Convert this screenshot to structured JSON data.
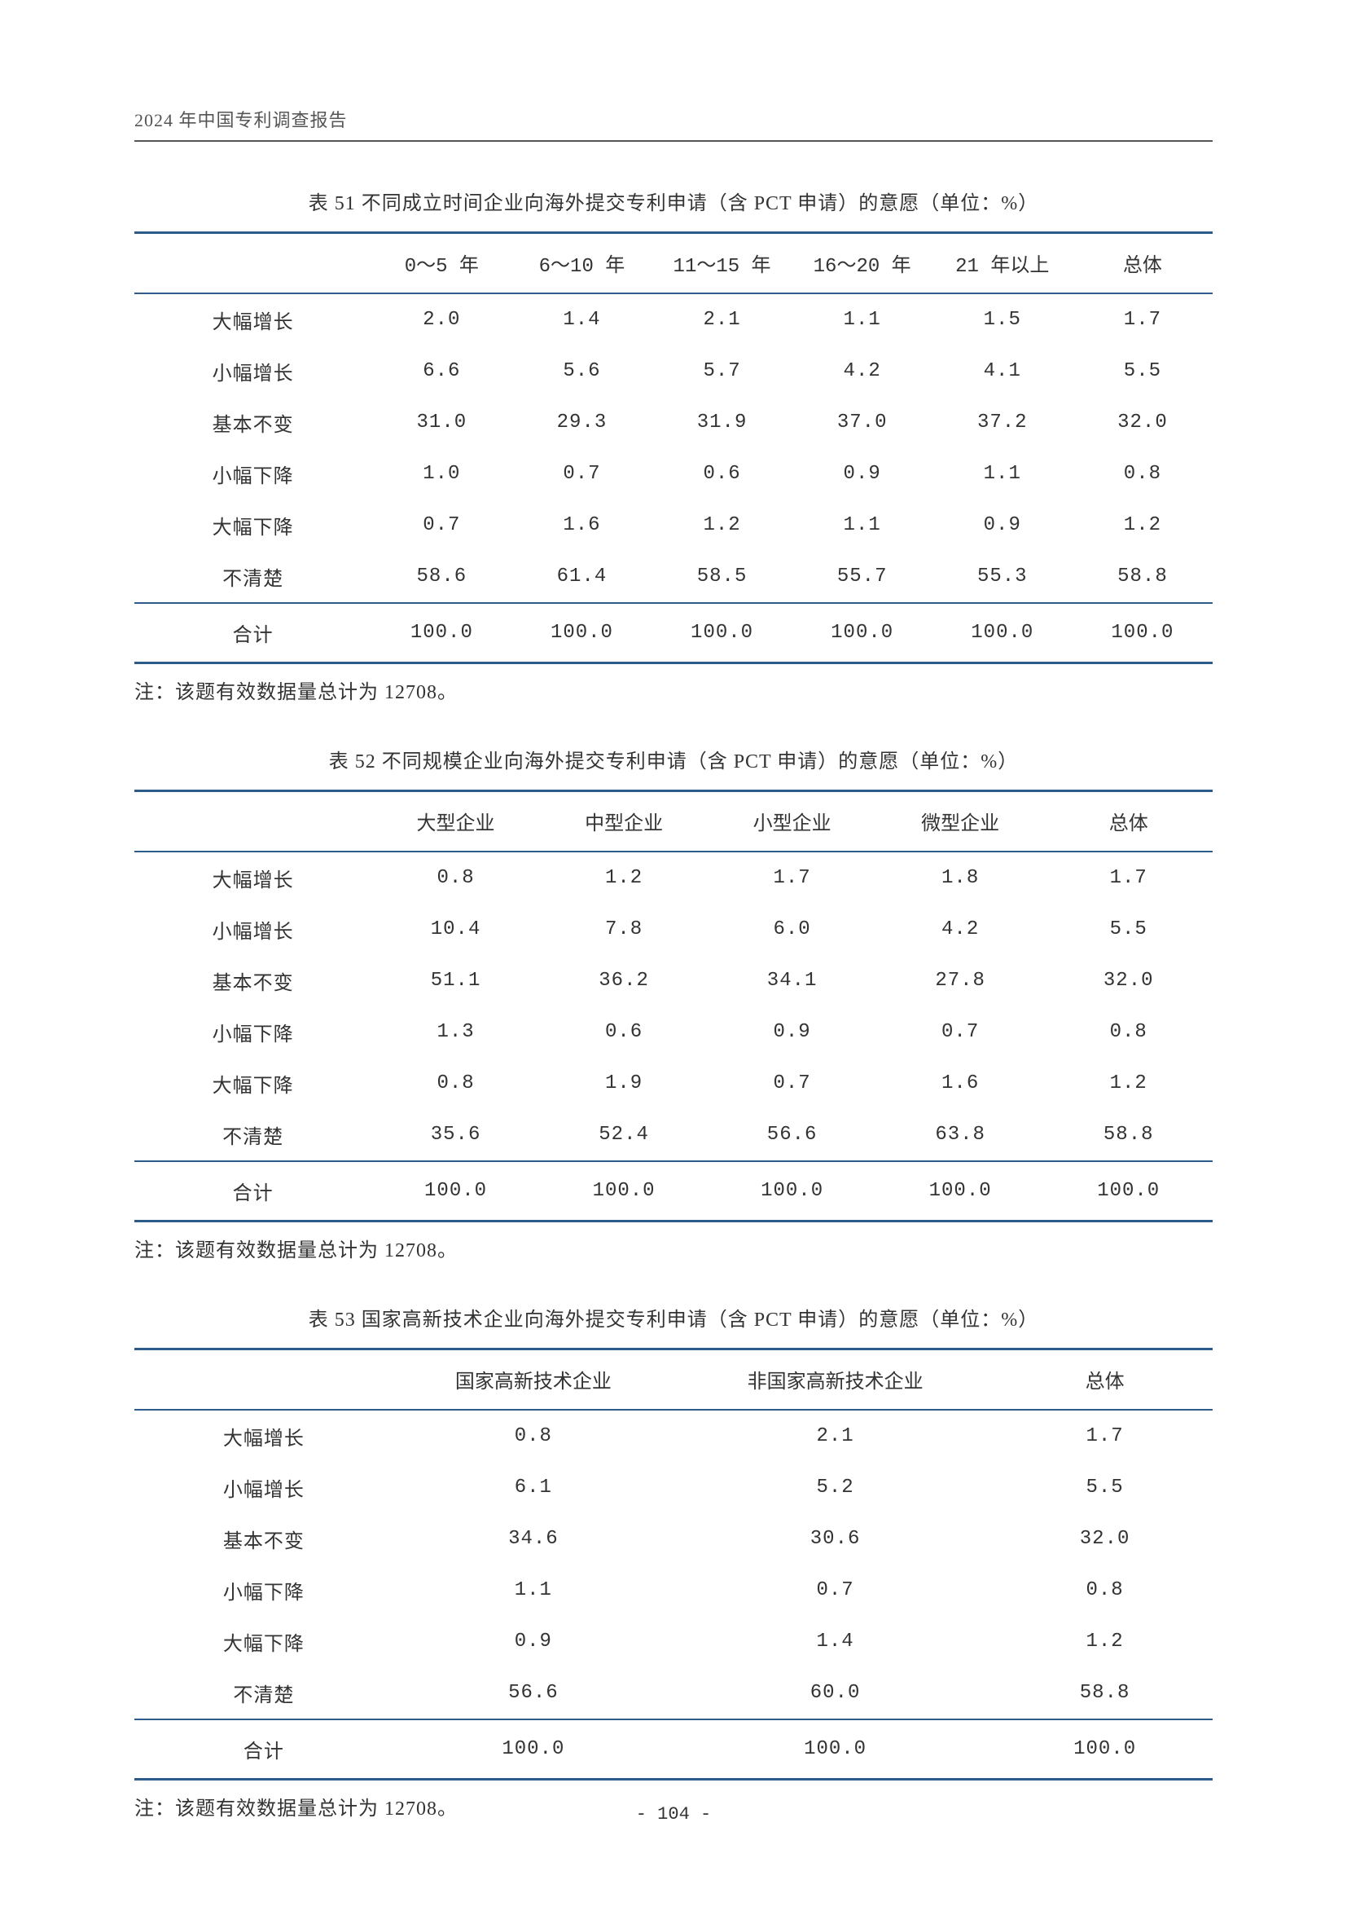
{
  "header": "2024 年中国专利调查报告",
  "page_number": "- 104 -",
  "tables": {
    "t51": {
      "caption": "表 51  不同成立时间企业向海外提交专利申请（含 PCT 申请）的意愿（单位：%）",
      "columns": [
        "",
        "0～5 年",
        "6～10 年",
        "11～15 年",
        "16～20 年",
        "21 年以上",
        "总体"
      ],
      "rows": [
        {
          "label": "大幅增长",
          "vals": [
            "2.0",
            "1.4",
            "2.1",
            "1.1",
            "1.5",
            "1.7"
          ]
        },
        {
          "label": "小幅增长",
          "vals": [
            "6.6",
            "5.6",
            "5.7",
            "4.2",
            "4.1",
            "5.5"
          ]
        },
        {
          "label": "基本不变",
          "vals": [
            "31.0",
            "29.3",
            "31.9",
            "37.0",
            "37.2",
            "32.0"
          ]
        },
        {
          "label": "小幅下降",
          "vals": [
            "1.0",
            "0.7",
            "0.6",
            "0.9",
            "1.1",
            "0.8"
          ]
        },
        {
          "label": "大幅下降",
          "vals": [
            "0.7",
            "1.6",
            "1.2",
            "1.1",
            "0.9",
            "1.2"
          ]
        },
        {
          "label": "不清楚",
          "vals": [
            "58.6",
            "61.4",
            "58.5",
            "55.7",
            "55.3",
            "58.8"
          ]
        }
      ],
      "total": {
        "label": "合计",
        "vals": [
          "100.0",
          "100.0",
          "100.0",
          "100.0",
          "100.0",
          "100.0"
        ]
      },
      "note": "注：该题有效数据量总计为 12708。"
    },
    "t52": {
      "caption": "表 52  不同规模企业向海外提交专利申请（含 PCT 申请）的意愿（单位：%）",
      "columns": [
        "",
        "大型企业",
        "中型企业",
        "小型企业",
        "微型企业",
        "总体"
      ],
      "rows": [
        {
          "label": "大幅增长",
          "vals": [
            "0.8",
            "1.2",
            "1.7",
            "1.8",
            "1.7"
          ]
        },
        {
          "label": "小幅增长",
          "vals": [
            "10.4",
            "7.8",
            "6.0",
            "4.2",
            "5.5"
          ]
        },
        {
          "label": "基本不变",
          "vals": [
            "51.1",
            "36.2",
            "34.1",
            "27.8",
            "32.0"
          ]
        },
        {
          "label": "小幅下降",
          "vals": [
            "1.3",
            "0.6",
            "0.9",
            "0.7",
            "0.8"
          ]
        },
        {
          "label": "大幅下降",
          "vals": [
            "0.8",
            "1.9",
            "0.7",
            "1.6",
            "1.2"
          ]
        },
        {
          "label": "不清楚",
          "vals": [
            "35.6",
            "52.4",
            "56.6",
            "63.8",
            "58.8"
          ]
        }
      ],
      "total": {
        "label": "合计",
        "vals": [
          "100.0",
          "100.0",
          "100.0",
          "100.0",
          "100.0"
        ]
      },
      "note": "注：该题有效数据量总计为 12708。"
    },
    "t53": {
      "caption": "表 53  国家高新技术企业向海外提交专利申请（含 PCT 申请）的意愿（单位：%）",
      "columns": [
        "",
        "国家高新技术企业",
        "非国家高新技术企业",
        "总体"
      ],
      "rows": [
        {
          "label": "大幅增长",
          "vals": [
            "0.8",
            "2.1",
            "1.7"
          ]
        },
        {
          "label": "小幅增长",
          "vals": [
            "6.1",
            "5.2",
            "5.5"
          ]
        },
        {
          "label": "基本不变",
          "vals": [
            "34.6",
            "30.6",
            "32.0"
          ]
        },
        {
          "label": "小幅下降",
          "vals": [
            "1.1",
            "0.7",
            "0.8"
          ]
        },
        {
          "label": "大幅下降",
          "vals": [
            "0.9",
            "1.4",
            "1.2"
          ]
        },
        {
          "label": "不清楚",
          "vals": [
            "56.6",
            "60.0",
            "58.8"
          ]
        }
      ],
      "total": {
        "label": "合计",
        "vals": [
          "100.0",
          "100.0",
          "100.0"
        ]
      },
      "note": "注：该题有效数据量总计为 12708。"
    }
  },
  "colors": {
    "rule": "#2e5c8a",
    "text": "#333333",
    "header_text": "#555555",
    "bg": "#ffffff"
  }
}
